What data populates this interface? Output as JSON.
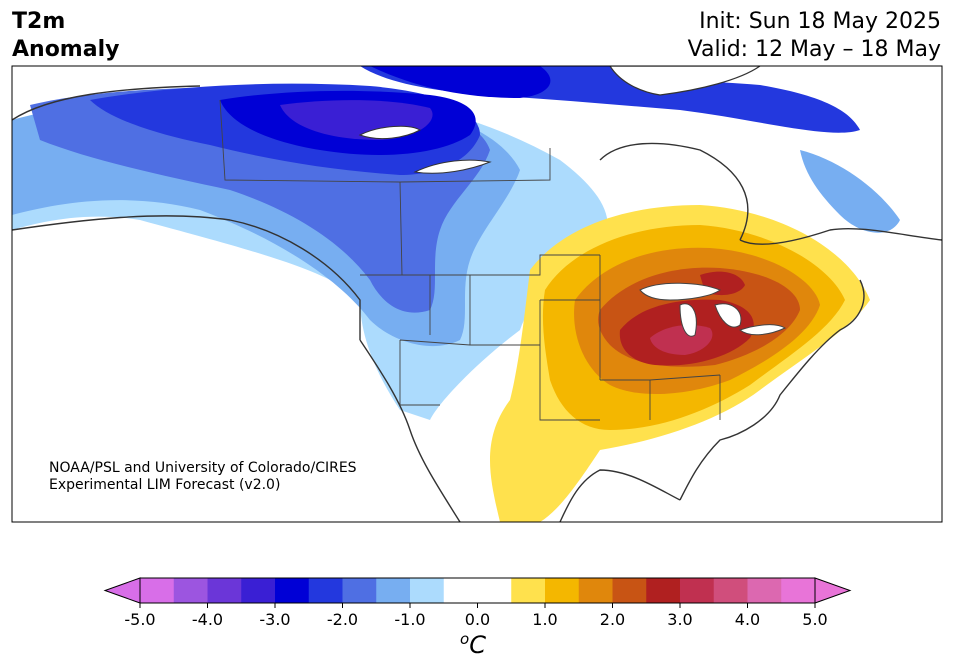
{
  "header": {
    "title_line1": "T2m",
    "title_line2": "Anomaly",
    "init": "Init: Sun 18 May 2025",
    "valid": "Valid: 12 May – 18 May"
  },
  "credit": {
    "line1": "NOAA/PSL and University of Colorado/CIRES",
    "line2": "Experimental LIM Forecast (v2.0)"
  },
  "colorbar": {
    "unit_base": "C",
    "unit_sup": "o",
    "tick_labels": [
      "-5.0",
      "-4.0",
      "-3.0",
      "-2.0",
      "-1.0",
      "0.0",
      "1.0",
      "2.0",
      "3.0",
      "4.0",
      "5.0"
    ],
    "colors": [
      "#d86ee8",
      "#9c55e0",
      "#6b36d8",
      "#3a1fd4",
      "#0000d6",
      "#2338de",
      "#4f6fe3",
      "#77aef1",
      "#acdbfd",
      "#ffffff",
      "#ffffff",
      "#ffe14d",
      "#f4b700",
      "#e0870c",
      "#c85414",
      "#b02020",
      "#c03050",
      "#d04e7c",
      "#dc68b0",
      "#e874d8"
    ],
    "over_color": "#e874d8",
    "under_color": "#d86ee8"
  }
}
